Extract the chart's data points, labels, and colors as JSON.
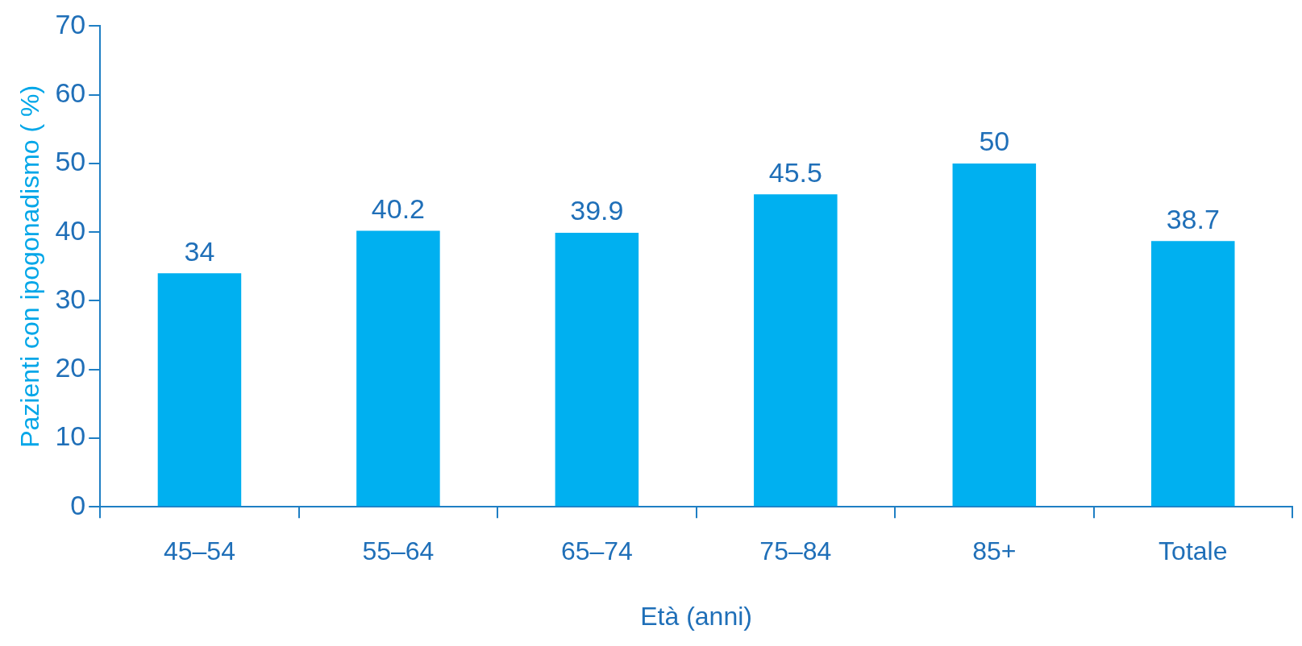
{
  "chart_data": {
    "type": "bar",
    "xlabel": "Età (anni)",
    "ylabel": "Pazienti con ipogonadismo ( %)",
    "categories": [
      "45–54",
      "55–64",
      "65–74",
      "75–84",
      "85+",
      "Totale"
    ],
    "values": [
      34,
      40.2,
      39.9,
      45.5,
      50,
      38.7
    ],
    "color": "#00b0f0",
    "ylim": [
      0,
      70
    ],
    "yticks": [
      0,
      10,
      20,
      30,
      40,
      50,
      60,
      70
    ],
    "grid": false,
    "legend": false,
    "data_labels": true
  }
}
